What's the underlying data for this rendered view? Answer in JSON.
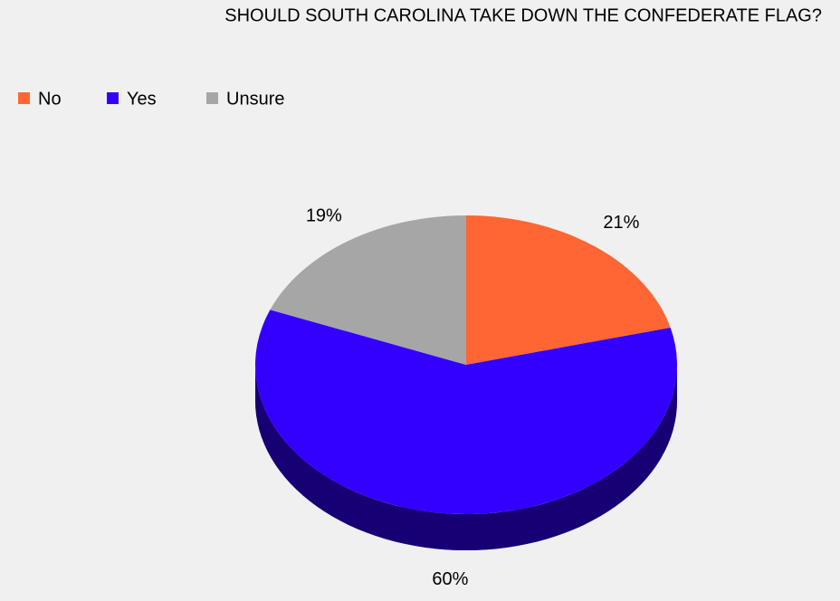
{
  "chart_data": {
    "type": "pie",
    "title": "SHOULD SOUTH CAROLINA TAKE DOWN THE CONFEDERATE FLAG?",
    "categories": [
      "No",
      "Yes",
      "Unsure"
    ],
    "values": [
      21,
      60,
      19
    ],
    "value_labels": [
      "21%",
      "60%",
      "19%"
    ],
    "colors": [
      "#ff6633",
      "#3300ff",
      "#a6a6a6"
    ],
    "legend": "top-left"
  }
}
